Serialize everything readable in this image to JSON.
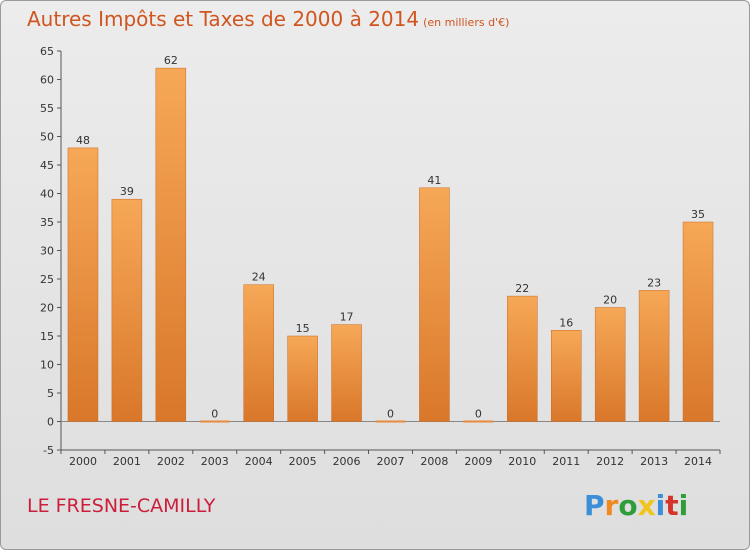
{
  "title": "Autres Impôts et Taxes de 2000 à 2014",
  "unit_note": "(en milliers d'€)",
  "location": "LE FRESNE-CAMILLY",
  "logo": {
    "p": "P",
    "r": "r",
    "o": "o",
    "x": "x",
    "i": "i",
    "t": "t",
    "i2": "i"
  },
  "colors": {
    "bar_top": "#f6a857",
    "bar_bottom": "#d9772a",
    "title": "#d0551f",
    "location": "#cc1e3a"
  },
  "chart_data": {
    "type": "bar",
    "categories": [
      "2000",
      "2001",
      "2002",
      "2003",
      "2004",
      "2005",
      "2006",
      "2007",
      "2008",
      "2009",
      "2010",
      "2011",
      "2012",
      "2013",
      "2014"
    ],
    "values": [
      48,
      39,
      62,
      0,
      24,
      15,
      17,
      0,
      41,
      0,
      22,
      16,
      20,
      23,
      35
    ],
    "ylim": [
      -5,
      65
    ],
    "yticks": [
      -5,
      0,
      5,
      10,
      15,
      20,
      25,
      30,
      35,
      40,
      45,
      50,
      55,
      60,
      65
    ],
    "grid": false,
    "data_labels": true
  }
}
